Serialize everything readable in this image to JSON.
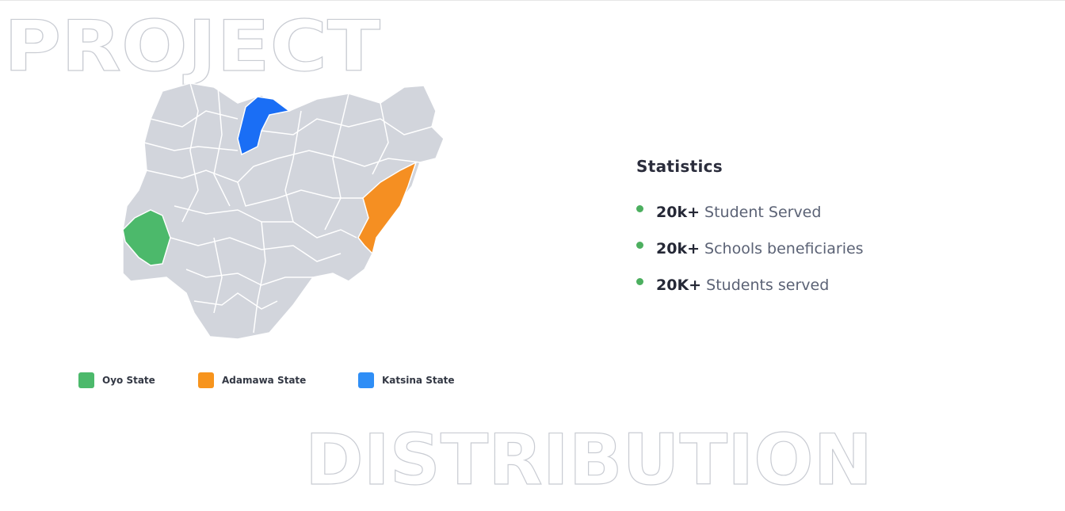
{
  "header": {
    "title_top": "PROJECT",
    "title_bottom": "DISTRIBUTION"
  },
  "legend": [
    {
      "label": "Oyo State"
    },
    {
      "label": "Adamawa State"
    },
    {
      "label": "Katsina State"
    }
  ],
  "statistics": {
    "title": "Statistics",
    "items": [
      {
        "value": "20k+",
        "label": "Student Served"
      },
      {
        "value": "20k+",
        "label": "Schools beneficiaries"
      },
      {
        "value": "20K+",
        "label": "Students served"
      }
    ]
  }
}
